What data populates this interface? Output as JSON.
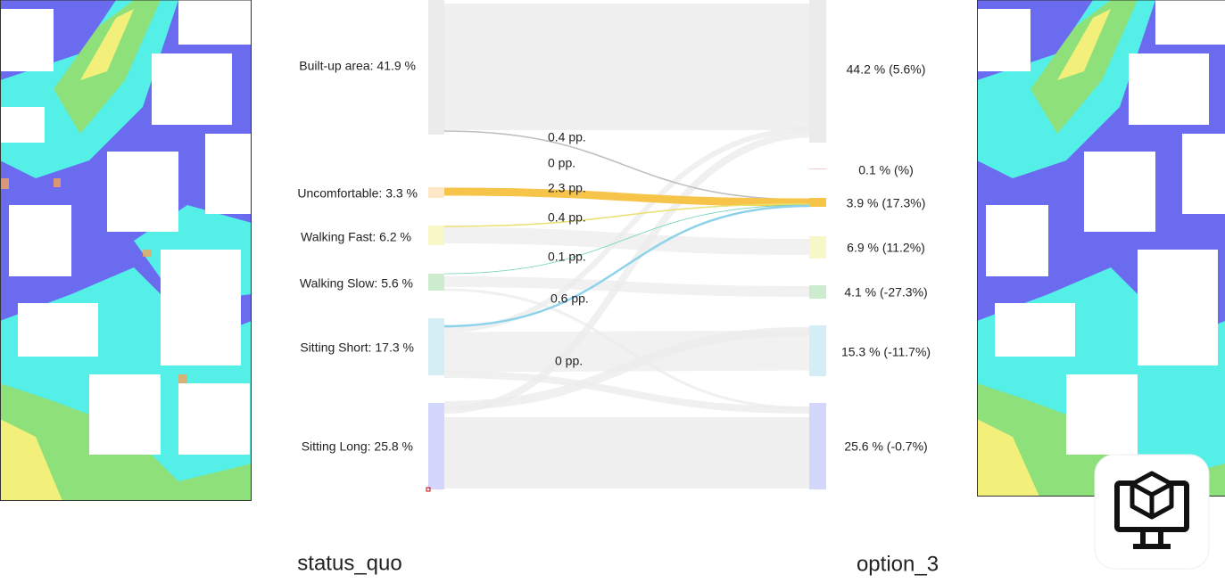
{
  "sankey": {
    "left_nodes": [
      "Built-up area:  41.9 %",
      "Uncomfortable:  3.3 %",
      "Walking Fast:  6.2 %",
      "Walking Slow:  5.6 %",
      "Sitting Short:  17.3 %",
      "Sitting Long:  25.8 %"
    ],
    "right_nodes": [
      "44.2 % (5.6%)",
      "0.1 % (%)",
      "3.9 % (17.3%)",
      "6.9 % (11.2%)",
      "4.1 % (-27.3%)",
      "15.3 % (-11.7%)",
      "25.6 % (-0.7%)"
    ],
    "flows": [
      "0.4 pp.",
      "0 pp.",
      "2.3 pp.",
      "0.4 pp.",
      "0.1 pp.",
      "0.6 pp.",
      "0 pp."
    ]
  },
  "captions": {
    "left": "status_quo",
    "right": "option_3"
  }
}
